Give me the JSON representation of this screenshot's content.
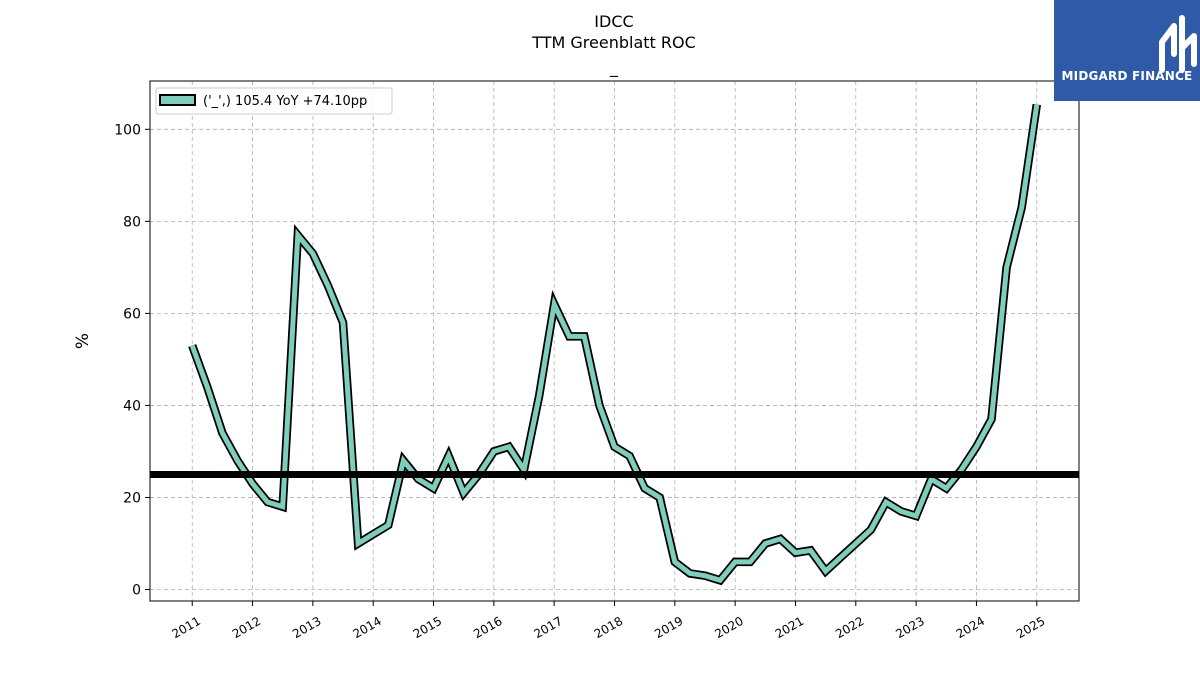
{
  "header": {
    "title": "IDCC",
    "subtitle": "TTM Greenblatt ROC",
    "note": "_"
  },
  "logo": {
    "text": "MIDGARD FINANCE",
    "color": "#2f5aa8"
  },
  "chart_data": {
    "type": "line",
    "ylabel": "%",
    "xlabel": "",
    "ylim": [
      -2.5,
      110.5
    ],
    "xlim": [
      2010.3,
      2025.7
    ],
    "yticks": [
      0,
      20,
      40,
      60,
      80,
      100
    ],
    "xticks": [
      "2011",
      "2012",
      "2013",
      "2014",
      "2015",
      "2016",
      "2017",
      "2018",
      "2019",
      "2020",
      "2021",
      "2022",
      "2023",
      "2024",
      "2025"
    ],
    "grid": true,
    "legend_position": "top-left",
    "reference_line": {
      "y": 25,
      "color": "#000000"
    },
    "series": [
      {
        "name": "('_',) 105.4 YoY +74.10pp",
        "color": "#7fcdbb",
        "edge_color": "#000000",
        "x": [
          "2011-01",
          "2011-04",
          "2011-07",
          "2011-10",
          "2012-01",
          "2012-04",
          "2012-07",
          "2012-10",
          "2013-01",
          "2013-04",
          "2013-07",
          "2013-10",
          "2014-01",
          "2014-04",
          "2014-07",
          "2014-10",
          "2015-01",
          "2015-04",
          "2015-07",
          "2015-10",
          "2016-01",
          "2016-04",
          "2016-07",
          "2016-10",
          "2017-01",
          "2017-04",
          "2017-07",
          "2017-10",
          "2018-01",
          "2018-04",
          "2018-07",
          "2018-10",
          "2019-01",
          "2019-04",
          "2019-07",
          "2019-10",
          "2020-01",
          "2020-04",
          "2020-07",
          "2020-10",
          "2021-01",
          "2021-04",
          "2021-07",
          "2021-10",
          "2022-01",
          "2022-04",
          "2022-07",
          "2022-10",
          "2023-01",
          "2023-04",
          "2023-07",
          "2023-10",
          "2024-01",
          "2024-04",
          "2024-07",
          "2024-10",
          "2025-01"
        ],
        "values": [
          53,
          44,
          34,
          28,
          23,
          19,
          18,
          77,
          73,
          66,
          58,
          10,
          12,
          14,
          28,
          24,
          22,
          29,
          21,
          25,
          30,
          31,
          26,
          42,
          62,
          55,
          55,
          40,
          31,
          29,
          22,
          20,
          6,
          3.5,
          3,
          2,
          6,
          6,
          10,
          11,
          8,
          8.5,
          4,
          7,
          10,
          13,
          19,
          17,
          16,
          24,
          22,
          26,
          31,
          37,
          70,
          83,
          105.4
        ]
      }
    ]
  }
}
